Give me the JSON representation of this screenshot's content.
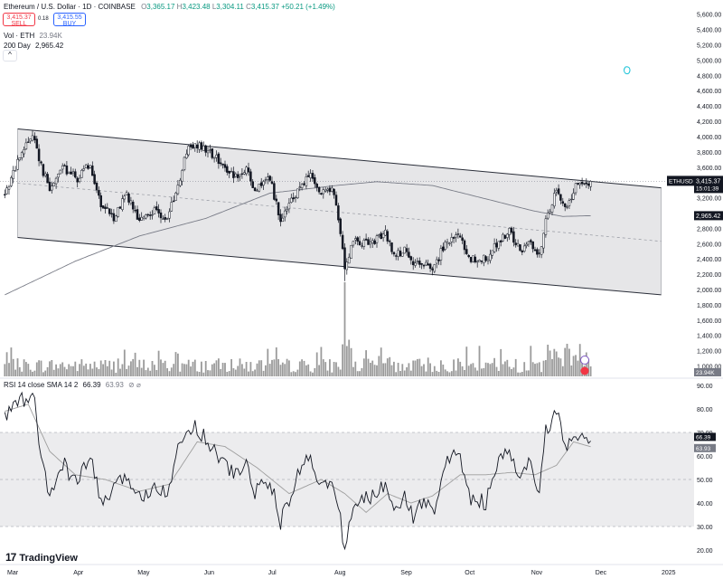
{
  "header": {
    "symbol_line": "Ethereum / U.S. Dollar · 1D · COINBASE",
    "ohlc": {
      "o_label": "O",
      "o": "3,365.17",
      "h_label": "H",
      "h": "3,423.48",
      "l_label": "L",
      "l": "3,304.11",
      "c_label": "C",
      "c": "3,415.37",
      "change": "+50.21 (+1.49%)"
    },
    "sell_price": "3,415.37",
    "sell_label": "SELL",
    "spread": "0.18",
    "buy_price": "3,415.55",
    "buy_label": "BUY",
    "volume_label": "Vol · ETH",
    "volume_value": "23.94K",
    "ma_label": "200 Day",
    "ma_value": "2,965.42",
    "collapse_icon": "^"
  },
  "rsi_legend": {
    "label": "RSI 14 close SMA 14 2",
    "rsi_value": "66.39",
    "sma_value": "63.93",
    "icons": "⊘ ⌀"
  },
  "brand": {
    "name": "TradingView",
    "logo": "17"
  },
  "colors": {
    "up": "#089981",
    "down": "#f23645",
    "candle": "#131722",
    "ma": "#787b86",
    "channel_fill": "#e6e6e8",
    "rsi_band": "#ececee",
    "volume": "#9b9b9b",
    "brand_blue": "#2962ff"
  },
  "chart_data": {
    "type": "candlestick",
    "price_axis": {
      "ticks": [
        "5,600.00",
        "5,400.00",
        "5,200.00",
        "5,000.00",
        "4,800.00",
        "4,600.00",
        "4,400.00",
        "4,200.00",
        "4,000.00",
        "3,800.00",
        "3,600.00",
        "3,400.00",
        "3,200.00",
        "3,000.00",
        "2,800.00",
        "2,600.00",
        "2,400.00",
        "2,200.00",
        "2,000.00",
        "1,800.00",
        "1,600.00",
        "1,400.00",
        "1,200.00",
        "1,000.00"
      ],
      "values": [
        5600,
        5400,
        5200,
        5000,
        4800,
        4600,
        4400,
        4200,
        4000,
        3800,
        3600,
        3400,
        3200,
        3000,
        2800,
        2600,
        2400,
        2200,
        2000,
        1800,
        1600,
        1400,
        1200,
        1000
      ]
    },
    "x_axis": {
      "labels": [
        "Mar",
        "Apr",
        "May",
        "Jun",
        "Jul",
        "Aug",
        "Sep",
        "Oct",
        "Nov",
        "Dec",
        "2025"
      ],
      "dates": [
        "2024-03-01",
        "2024-04-01",
        "2024-05-01",
        "2024-06-01",
        "2024-07-01",
        "2024-08-01",
        "2024-09-01",
        "2024-10-01",
        "2024-11-01",
        "2024-12-01",
        "2025-01-01"
      ]
    },
    "price_keypoints": [
      [
        "2024-02-28",
        3240
      ],
      [
        "2024-03-05",
        3650
      ],
      [
        "2024-03-12",
        4050
      ],
      [
        "2024-03-16",
        3620
      ],
      [
        "2024-03-20",
        3300
      ],
      [
        "2024-03-26",
        3600
      ],
      [
        "2024-04-02",
        3450
      ],
      [
        "2024-04-08",
        3650
      ],
      [
        "2024-04-13",
        3100
      ],
      [
        "2024-04-19",
        2950
      ],
      [
        "2024-04-25",
        3250
      ],
      [
        "2024-05-01",
        2900
      ],
      [
        "2024-05-08",
        3050
      ],
      [
        "2024-05-14",
        2920
      ],
      [
        "2024-05-20",
        3450
      ],
      [
        "2024-05-23",
        3800
      ],
      [
        "2024-05-27",
        3900
      ],
      [
        "2024-06-03",
        3780
      ],
      [
        "2024-06-07",
        3700
      ],
      [
        "2024-06-14",
        3480
      ],
      [
        "2024-06-20",
        3550
      ],
      [
        "2024-06-24",
        3300
      ],
      [
        "2024-07-01",
        3450
      ],
      [
        "2024-07-06",
        2900
      ],
      [
        "2024-07-10",
        3100
      ],
      [
        "2024-07-15",
        3350
      ],
      [
        "2024-07-20",
        3500
      ],
      [
        "2024-07-25",
        3250
      ],
      [
        "2024-07-30",
        3300
      ],
      [
        "2024-08-02",
        2950
      ],
      [
        "2024-08-05",
        2300
      ],
      [
        "2024-08-09",
        2650
      ],
      [
        "2024-08-15",
        2600
      ],
      [
        "2024-08-20",
        2650
      ],
      [
        "2024-08-24",
        2750
      ],
      [
        "2024-08-28",
        2450
      ],
      [
        "2024-09-02",
        2500
      ],
      [
        "2024-09-06",
        2300
      ],
      [
        "2024-09-10",
        2350
      ],
      [
        "2024-09-16",
        2300
      ],
      [
        "2024-09-20",
        2550
      ],
      [
        "2024-09-27",
        2700
      ],
      [
        "2024-10-03",
        2400
      ],
      [
        "2024-10-10",
        2400
      ],
      [
        "2024-10-15",
        2600
      ],
      [
        "2024-10-21",
        2750
      ],
      [
        "2024-10-26",
        2500
      ],
      [
        "2024-10-30",
        2650
      ],
      [
        "2024-11-04",
        2450
      ],
      [
        "2024-11-07",
        2900
      ],
      [
        "2024-11-12",
        3300
      ],
      [
        "2024-11-16",
        3050
      ],
      [
        "2024-11-21",
        3350
      ],
      [
        "2024-11-26",
        3400
      ],
      [
        "2024-11-28",
        3415.37
      ]
    ],
    "ma200_keypoints": [
      [
        "2024-02-28",
        1930
      ],
      [
        "2024-04-01",
        2370
      ],
      [
        "2024-05-01",
        2700
      ],
      [
        "2024-06-01",
        2930
      ],
      [
        "2024-07-01",
        3260
      ],
      [
        "2024-08-01",
        3360
      ],
      [
        "2024-08-20",
        3410
      ],
      [
        "2024-09-15",
        3360
      ],
      [
        "2024-10-15",
        3150
      ],
      [
        "2024-11-01",
        3030
      ],
      [
        "2024-11-15",
        2955
      ],
      [
        "2024-11-28",
        2965.42
      ]
    ],
    "channel": {
      "upper": [
        [
          "2024-03-05",
          4100
        ],
        [
          "2024-12-31",
          3330
        ]
      ],
      "lower": [
        [
          "2024-03-05",
          2680
        ],
        [
          "2024-12-31",
          1930
        ]
      ],
      "fill_start": "2024-03-05",
      "fill_end": "2024-12-31"
    },
    "midline": {
      "from": [
        "2024-03-05",
        3390
      ],
      "to": [
        "2024-12-31",
        2630
      ]
    },
    "dotted_level": 3415.37,
    "price_tags": [
      {
        "label": "ETHUSD",
        "value": "3,415.37",
        "timer": "15:01:39"
      },
      {
        "label": "",
        "value": "2,965.42"
      }
    ],
    "volume": {
      "last": "23.94K",
      "spike_date": "2024-08-05"
    },
    "rsi": {
      "axis_ticks": [
        "90.00",
        "80.00",
        "70.00",
        "60.00",
        "50.00",
        "40.00",
        "30.00",
        "20.00"
      ],
      "axis_values": [
        90,
        80,
        70,
        60,
        50,
        40,
        30,
        20
      ],
      "band": [
        30,
        70
      ],
      "midline": 50,
      "rsi_keypoints": [
        [
          "2024-02-28",
          76
        ],
        [
          "2024-03-05",
          84
        ],
        [
          "2024-03-11",
          83
        ],
        [
          "2024-03-13",
          85
        ],
        [
          "2024-03-16",
          58
        ],
        [
          "2024-03-20",
          42
        ],
        [
          "2024-03-26",
          57
        ],
        [
          "2024-04-02",
          48
        ],
        [
          "2024-04-08",
          60
        ],
        [
          "2024-04-13",
          40
        ],
        [
          "2024-04-19",
          45
        ],
        [
          "2024-04-25",
          52
        ],
        [
          "2024-05-01",
          42
        ],
        [
          "2024-05-08",
          48
        ],
        [
          "2024-05-14",
          45
        ],
        [
          "2024-05-20",
          65
        ],
        [
          "2024-05-26",
          74
        ],
        [
          "2024-06-03",
          65
        ],
        [
          "2024-06-07",
          60
        ],
        [
          "2024-06-14",
          52
        ],
        [
          "2024-06-20",
          56
        ],
        [
          "2024-06-24",
          45
        ],
        [
          "2024-07-01",
          50
        ],
        [
          "2024-07-06",
          32
        ],
        [
          "2024-07-10",
          40
        ],
        [
          "2024-07-15",
          55
        ],
        [
          "2024-07-20",
          60
        ],
        [
          "2024-07-25",
          47
        ],
        [
          "2024-07-30",
          48
        ],
        [
          "2024-08-02",
          38
        ],
        [
          "2024-08-05",
          21
        ],
        [
          "2024-08-09",
          38
        ],
        [
          "2024-08-15",
          42
        ],
        [
          "2024-08-20",
          44
        ],
        [
          "2024-08-24",
          48
        ],
        [
          "2024-08-28",
          40
        ],
        [
          "2024-09-02",
          42
        ],
        [
          "2024-09-06",
          34
        ],
        [
          "2024-09-10",
          40
        ],
        [
          "2024-09-16",
          38
        ],
        [
          "2024-09-20",
          55
        ],
        [
          "2024-09-27",
          62
        ],
        [
          "2024-10-03",
          42
        ],
        [
          "2024-10-10",
          40
        ],
        [
          "2024-10-15",
          55
        ],
        [
          "2024-10-21",
          63
        ],
        [
          "2024-10-26",
          48
        ],
        [
          "2024-10-30",
          58
        ],
        [
          "2024-11-04",
          45
        ],
        [
          "2024-11-07",
          70
        ],
        [
          "2024-11-12",
          80
        ],
        [
          "2024-11-16",
          62
        ],
        [
          "2024-11-21",
          68
        ],
        [
          "2024-11-26",
          67
        ],
        [
          "2024-11-28",
          66.39
        ]
      ],
      "sma_keypoints": [
        [
          "2024-02-28",
          79
        ],
        [
          "2024-03-10",
          82
        ],
        [
          "2024-03-20",
          62
        ],
        [
          "2024-04-01",
          52
        ],
        [
          "2024-04-15",
          50
        ],
        [
          "2024-05-01",
          45
        ],
        [
          "2024-05-15",
          48
        ],
        [
          "2024-05-28",
          66
        ],
        [
          "2024-06-10",
          64
        ],
        [
          "2024-06-25",
          55
        ],
        [
          "2024-07-10",
          44
        ],
        [
          "2024-07-25",
          50
        ],
        [
          "2024-08-05",
          44
        ],
        [
          "2024-08-15",
          36
        ],
        [
          "2024-08-25",
          44
        ],
        [
          "2024-09-05",
          40
        ],
        [
          "2024-09-15",
          43
        ],
        [
          "2024-09-28",
          52
        ],
        [
          "2024-10-10",
          52
        ],
        [
          "2024-10-22",
          53
        ],
        [
          "2024-11-02",
          52
        ],
        [
          "2024-11-12",
          56
        ],
        [
          "2024-11-20",
          66
        ],
        [
          "2024-11-28",
          63.93
        ]
      ]
    }
  }
}
